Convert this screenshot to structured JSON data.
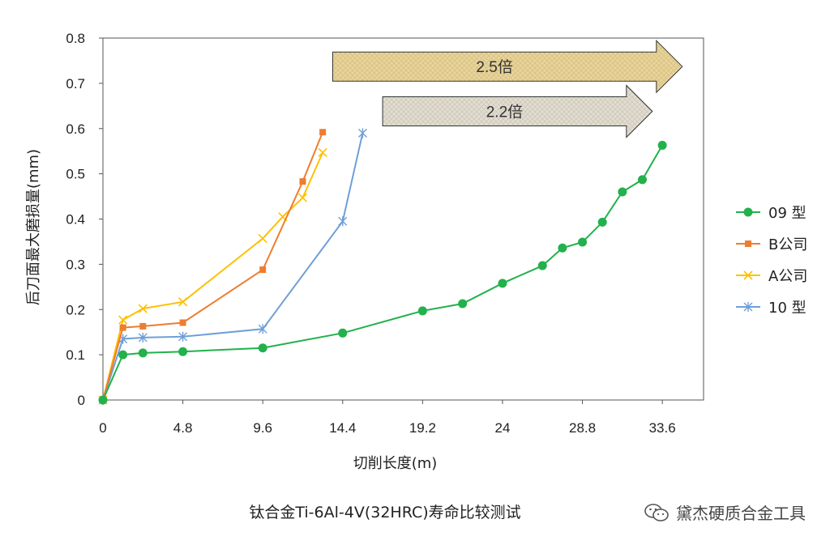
{
  "chart_data": {
    "type": "line",
    "title": "钛合金Ti-6Al-4V(32HRC)寿命比较测试",
    "xlabel": "切削长度(m)",
    "ylabel": "后刀面最大磨损量(mm)",
    "xlim": [
      0,
      36
    ],
    "ylim": [
      0,
      0.8
    ],
    "xticks": [
      0,
      4.8,
      9.6,
      14.4,
      19.2,
      24,
      28.8,
      33.6
    ],
    "xtick_labels": [
      "0",
      "4.8",
      "9.6",
      "14.4",
      "19.2",
      "24",
      "28.8",
      "33.6"
    ],
    "yticks": [
      0,
      0.1,
      0.2,
      0.3,
      0.4,
      0.5,
      0.6,
      0.7,
      0.8
    ],
    "ytick_labels": [
      "0",
      "0.1",
      "0.2",
      "0.3",
      "0.4",
      "0.5",
      "0.6",
      "0.7",
      "0.8"
    ],
    "grid": false,
    "legend_position": "right",
    "series": [
      {
        "name": "09 型",
        "color": "#22b14c",
        "marker": "circle",
        "x": [
          0,
          1.2,
          2.4,
          4.8,
          9.6,
          14.4,
          19.2,
          21.6,
          24,
          26.4,
          27.6,
          28.8,
          30.0,
          31.2,
          32.4,
          33.6
        ],
        "y": [
          0,
          0.1,
          0.104,
          0.107,
          0.115,
          0.148,
          0.197,
          0.213,
          0.258,
          0.297,
          0.336,
          0.349,
          0.393,
          0.46,
          0.487,
          0.563
        ]
      },
      {
        "name": "B公司",
        "color": "#ed7d31",
        "marker": "square",
        "x": [
          0,
          1.2,
          2.4,
          4.8,
          9.6,
          12.0,
          13.2
        ],
        "y": [
          0,
          0.16,
          0.163,
          0.171,
          0.288,
          0.483,
          0.592
        ]
      },
      {
        "name": "A公司",
        "color": "#ffc000",
        "marker": "x",
        "x": [
          0,
          1.2,
          2.4,
          4.8,
          9.6,
          10.8,
          12.0,
          13.2
        ],
        "y": [
          0,
          0.177,
          0.202,
          0.217,
          0.357,
          0.405,
          0.447,
          0.547
        ]
      },
      {
        "name": "10 型",
        "color": "#6f9fd8",
        "marker": "star",
        "x": [
          0,
          1.2,
          2.4,
          4.8,
          9.6,
          14.4,
          15.6
        ],
        "y": [
          0,
          0.135,
          0.138,
          0.14,
          0.157,
          0.395,
          0.59
        ]
      }
    ],
    "annotations": [
      {
        "text": "2.5倍",
        "x_start": 13.8,
        "x_end": 34.8,
        "y": 0.737
      },
      {
        "text": "2.2倍",
        "x_start": 16.8,
        "x_end": 33.0,
        "y": 0.638
      }
    ]
  },
  "watermark": {
    "icon": "wechat-icon",
    "text": "黛杰硬质合金工具"
  }
}
